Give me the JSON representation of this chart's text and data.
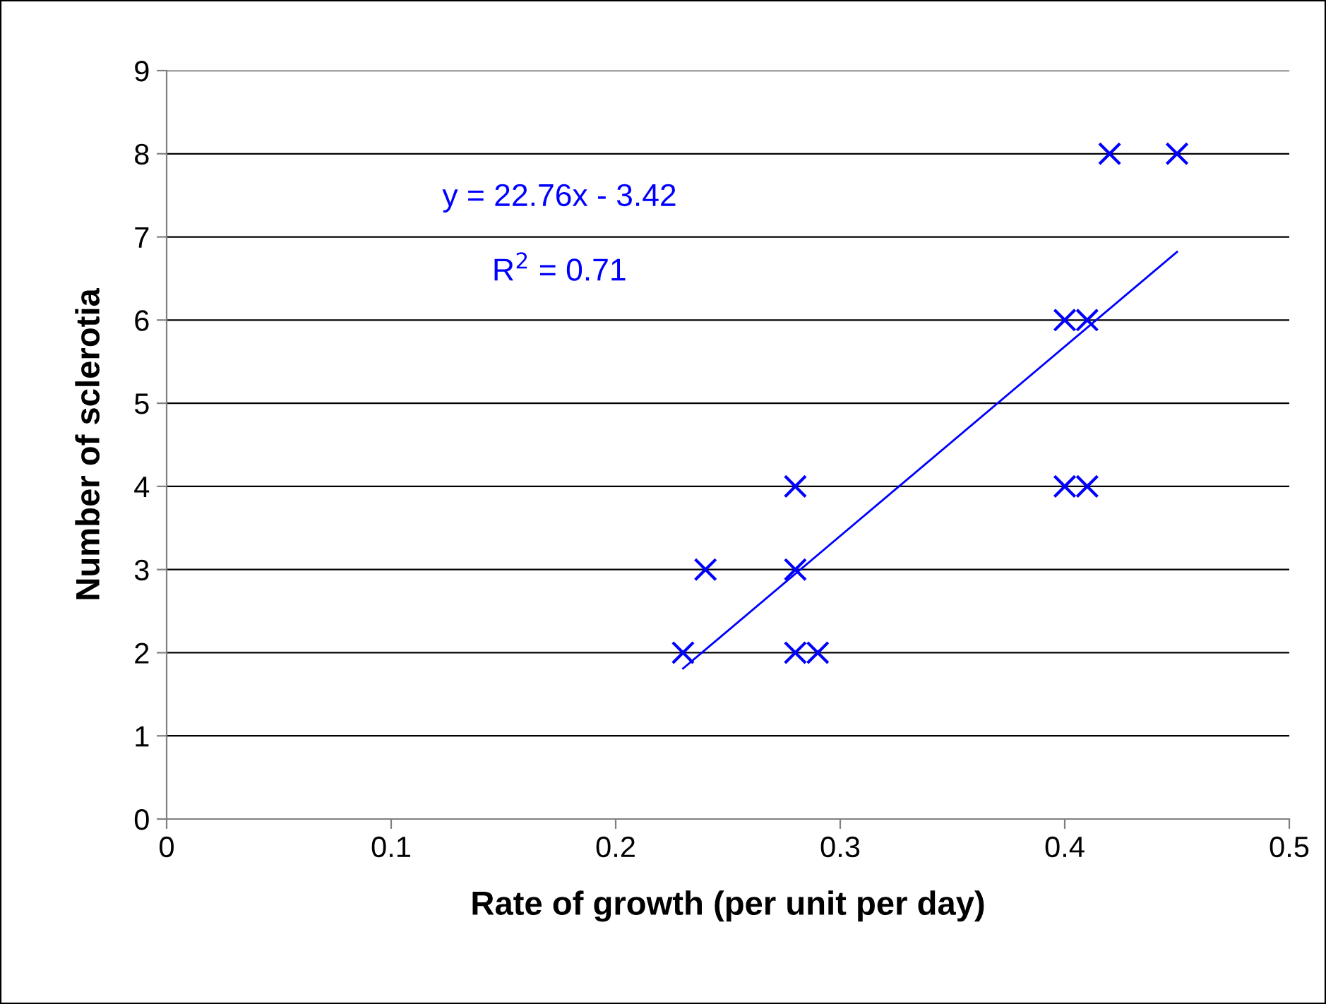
{
  "chart_data": {
    "type": "scatter",
    "xlabel": "Rate of growth (per unit per day)",
    "ylabel": "Number of sclerotia",
    "series": [
      {
        "color": "#0000ff",
        "marker": "cross",
        "x": [
          0.23,
          0.24,
          0.28,
          0.28,
          0.28,
          0.29,
          0.4,
          0.4,
          0.41,
          0.41,
          0.42,
          0.45
        ],
        "values": [
          2,
          3,
          4,
          3,
          2,
          2,
          6,
          4,
          6,
          4,
          8,
          8
        ]
      },
      {
        "type": "line",
        "color": "#0000ff",
        "marker": "none",
        "line_style": "solid",
        "x": [
          0.23,
          0.45
        ],
        "values": [
          1.81,
          6.82
        ]
      }
    ],
    "annotations": [
      {
        "text": "y = 22.76x - 3.42"
      },
      {
        "text": "R$^{2}$ = 0.71"
      }
    ],
    "xlim": [
      0,
      0.5
    ],
    "xticks": [
      0,
      0.1,
      0.2,
      0.3,
      0.4,
      0.5
    ],
    "ylim": [
      0,
      9
    ],
    "yticks": [
      0,
      1,
      2,
      3,
      4,
      5,
      6,
      7,
      8,
      9
    ],
    "grid": "y",
    "legend": false
  }
}
